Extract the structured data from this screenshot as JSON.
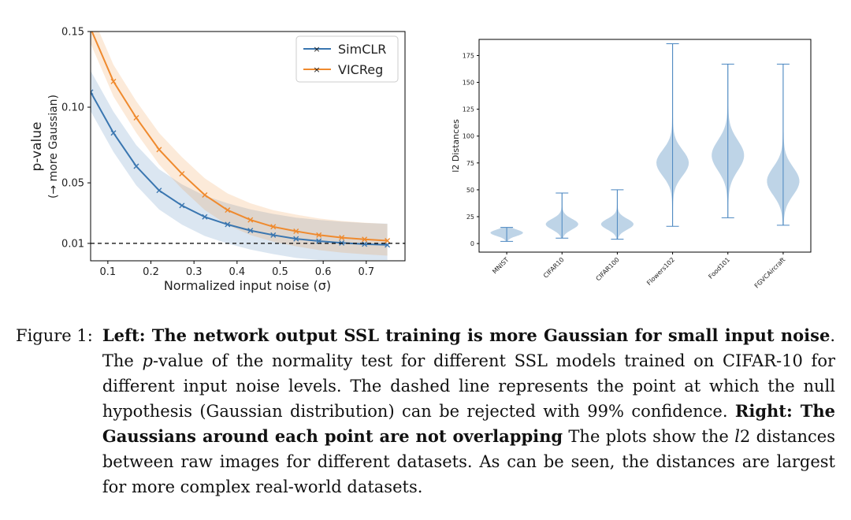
{
  "chart_data": [
    {
      "type": "line",
      "xlabel": "Normalized input noise (σ)",
      "ylabel": "p-value",
      "ylabel_sub": "(→ more Gaussian)",
      "xlim": [
        0.06,
        0.79
      ],
      "ylim": [
        -0.0015,
        0.15
      ],
      "xticks": [
        0.1,
        0.2,
        0.3,
        0.4,
        0.5,
        0.6,
        0.7
      ],
      "xtick_labels": [
        "0.1",
        "0.2",
        "0.3",
        "0.4",
        "0.5",
        "0.6",
        "0.7"
      ],
      "yticks": [
        0.01,
        0.05,
        0.1,
        0.15
      ],
      "ytick_labels": [
        "0.01",
        "0.05",
        "0.10",
        "0.15"
      ],
      "legend_position": "top-right",
      "threshold": 0.01,
      "x": [
        0.06,
        0.113,
        0.166,
        0.219,
        0.272,
        0.325,
        0.378,
        0.431,
        0.484,
        0.537,
        0.59,
        0.643,
        0.696,
        0.749
      ],
      "series": [
        {
          "name": "SimCLR",
          "color": "#3a76b0",
          "values": [
            0.11,
            0.083,
            0.061,
            0.045,
            0.035,
            0.0275,
            0.0225,
            0.0185,
            0.0155,
            0.013,
            0.0115,
            0.0103,
            0.0095,
            0.009
          ],
          "band": 0.014
        },
        {
          "name": "VICReg",
          "color": "#ef8a2e",
          "values": [
            0.152,
            0.117,
            0.093,
            0.072,
            0.056,
            0.042,
            0.032,
            0.0255,
            0.021,
            0.018,
            0.0155,
            0.0138,
            0.0127,
            0.0118
          ],
          "band": 0.011
        }
      ]
    },
    {
      "type": "violin",
      "ylabel": "l2 Distances",
      "ylim": [
        -8,
        190
      ],
      "yticks": [
        0,
        25,
        50,
        75,
        100,
        125,
        150,
        175
      ],
      "ytick_labels": [
        "0",
        "25",
        "50",
        "75",
        "100",
        "125",
        "150",
        "175"
      ],
      "color": "#b3cde3",
      "edge_color": "#4a86c0",
      "categories": [
        "MNIST",
        "CIFAR10",
        "CIFAR100",
        "Flowers102",
        "Food101",
        "FGVCAircraft"
      ],
      "min": [
        2,
        5,
        4,
        16,
        24,
        17
      ],
      "max": [
        15,
        47,
        50,
        186,
        167,
        167
      ],
      "mode": [
        10,
        18,
        18,
        75,
        82,
        58
      ],
      "spread": [
        3,
        5,
        5,
        12,
        14,
        13
      ]
    }
  ],
  "caption": {
    "label": "Figure 1:",
    "left_bold": "Left: The network output SSL training is more Gaussian for small input noise",
    "part1": ". The ",
    "p_italic": "p",
    "part2": "-value of the normality test for different SSL models trained on CIFAR-10 for different input noise levels. The dashed line represents the point at which the null hypothesis (Gaussian distribution) can be rejected with 99% confidence. ",
    "right_bold": "Right: The Gaussians around each point are not overlapping",
    "part3": " The plots show the ",
    "l_italic": "l",
    "part4": "2 distances between raw images for different datasets. As can be seen, the distances are largest for more complex real-world datasets."
  }
}
